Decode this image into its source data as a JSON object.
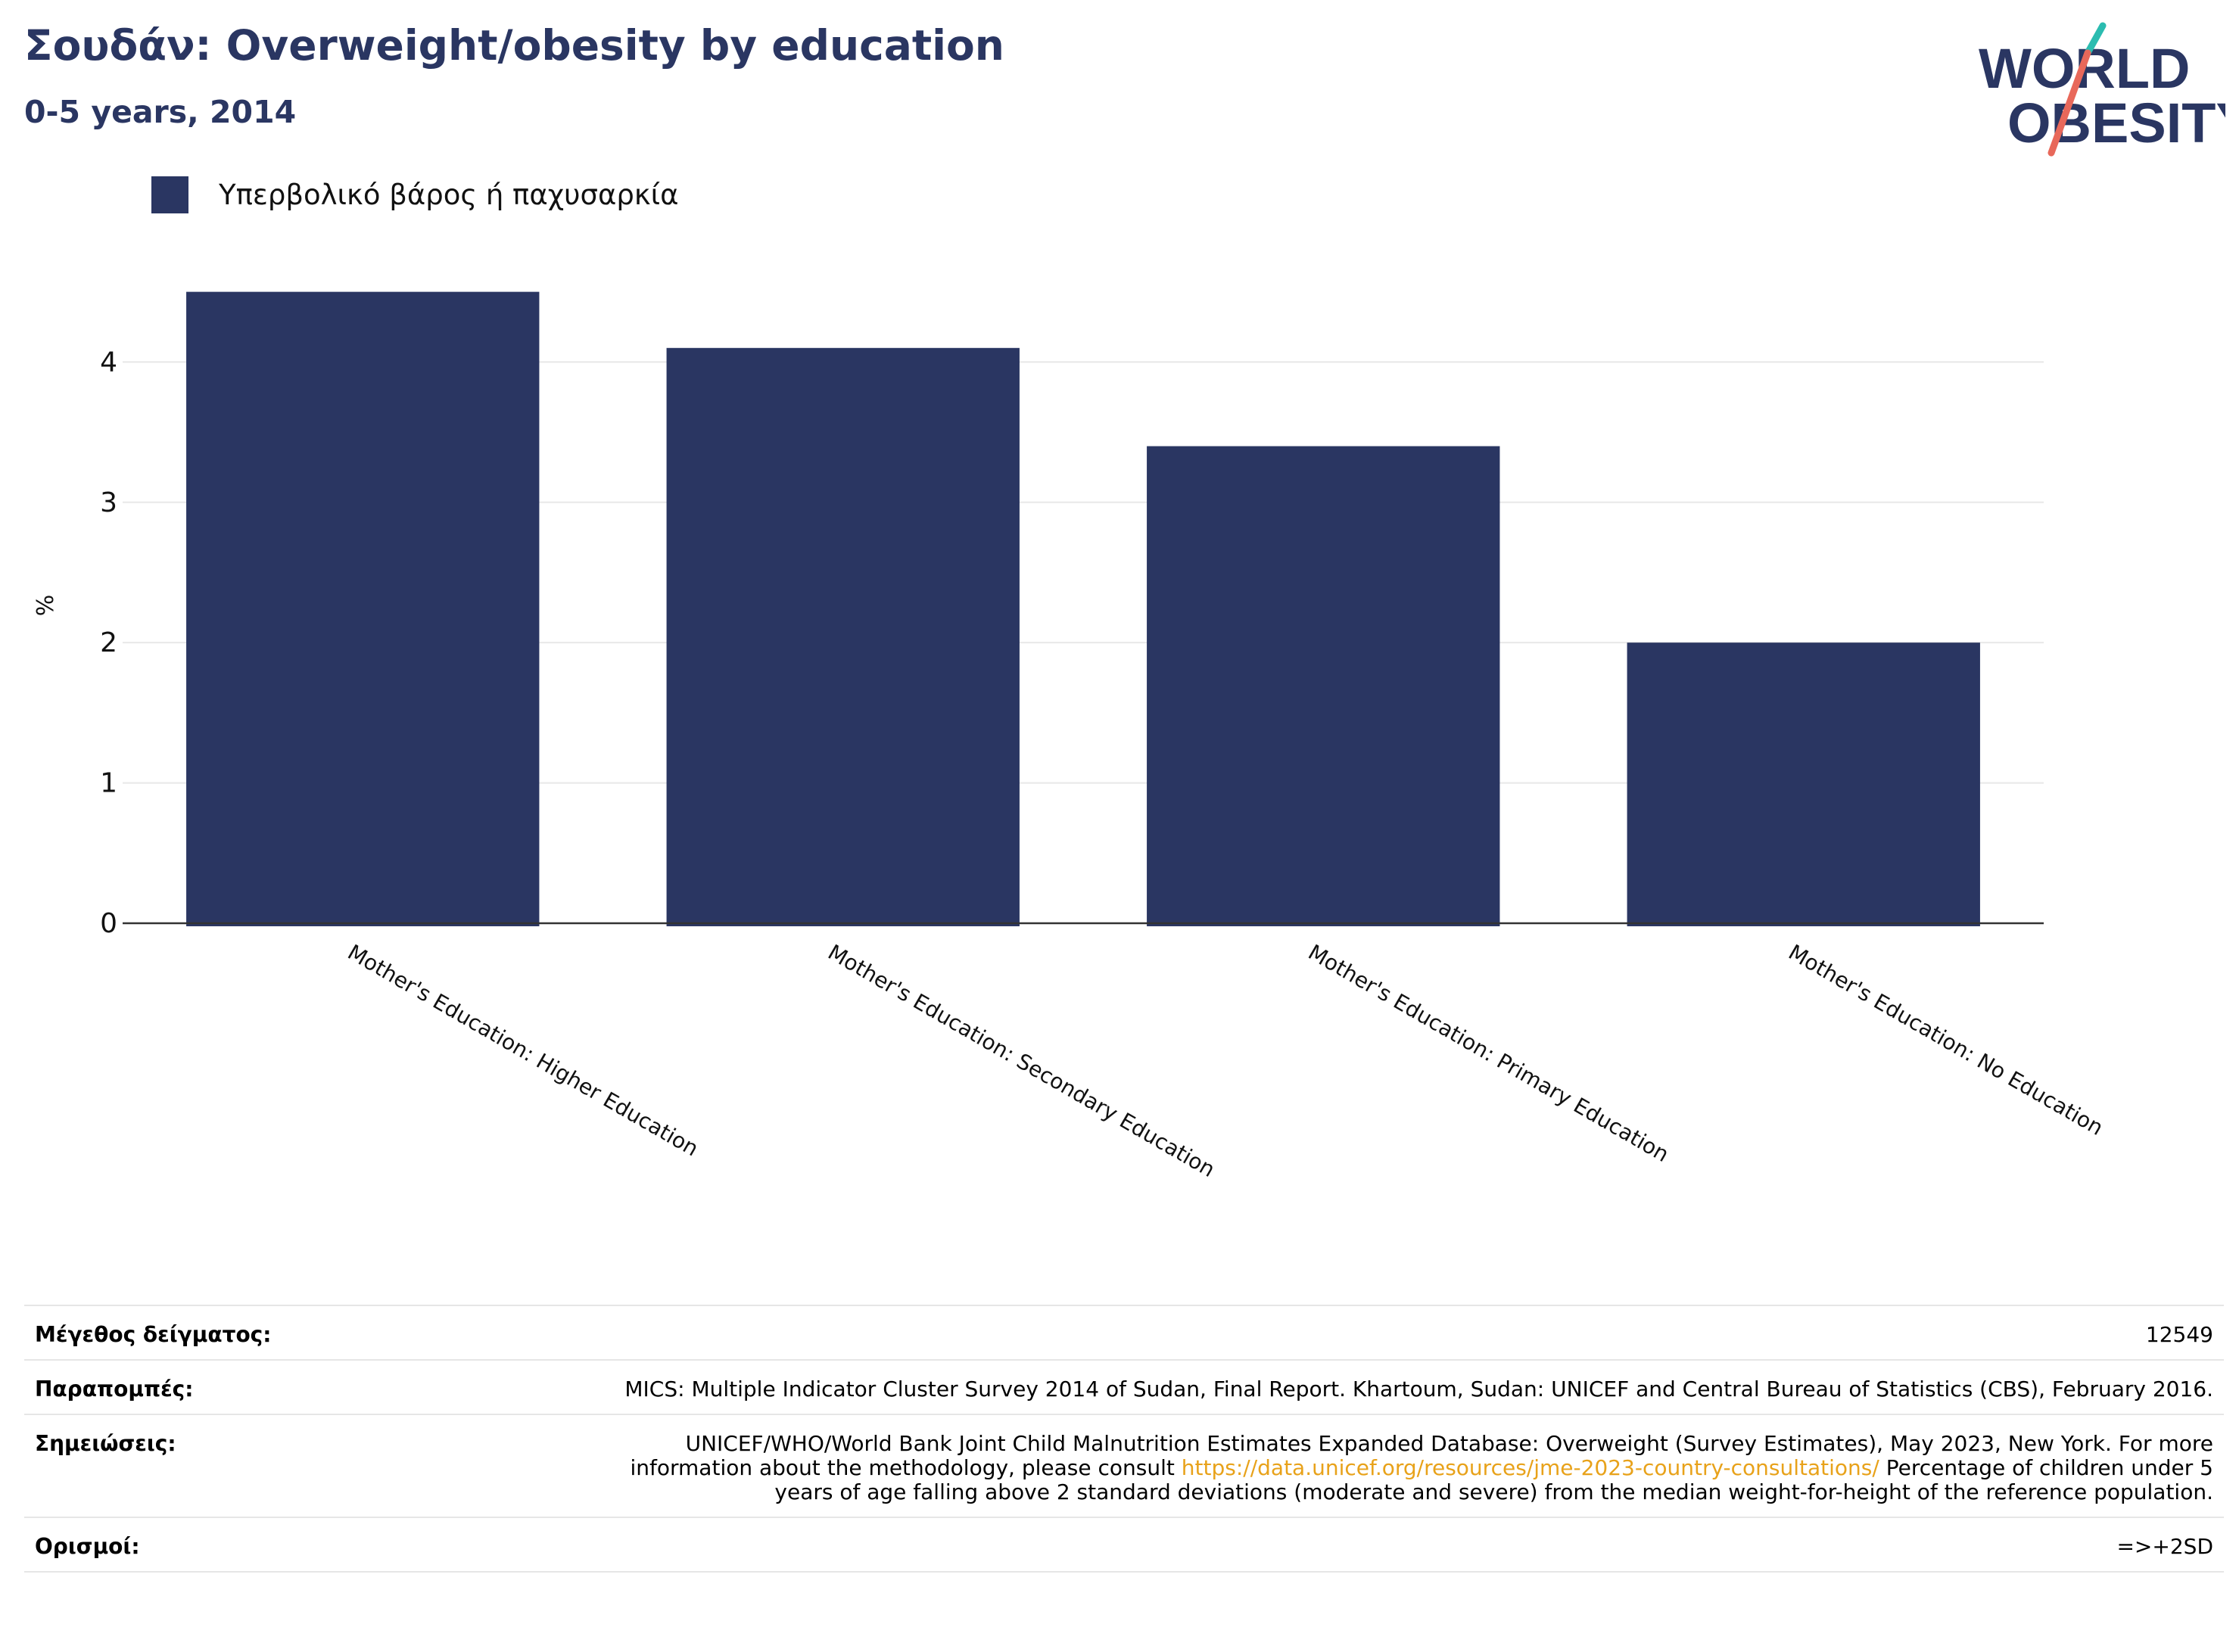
{
  "header": {
    "title": "Σουδάν: Overweight/obesity by education",
    "subtitle": "0-5 years, 2014"
  },
  "logo": {
    "line1": "WORLD",
    "line2": "OBESITY",
    "colors": {
      "text": "#2a3662",
      "accent_teal": "#2bbcb0",
      "accent_coral": "#e8685a"
    }
  },
  "legend": {
    "label": "Υπερβολικό βάρος ή παχυσαρκία",
    "color": "#2a3662"
  },
  "chart_data": {
    "type": "bar",
    "categories": [
      "Mother's Education: Higher Education",
      "Mother's Education: Secondary Education",
      "Mother's Education: Primary Education",
      "Mother's Education: No Education"
    ],
    "series": [
      {
        "name": "Υπερβολικό βάρος ή παχυσαρκία",
        "values": [
          4.5,
          4.1,
          3.4,
          2.0
        ],
        "color": "#2a3662"
      }
    ],
    "ylabel": "%",
    "ylim": [
      0,
      4.8
    ],
    "yticks": [
      0,
      1,
      2,
      3,
      4
    ],
    "grid": true,
    "legend_position": "top-left"
  },
  "info": {
    "sample_size_label": "Μέγεθος δείγματος:",
    "sample_size_value": "12549",
    "references_label": "Παραπομπές:",
    "references_value": "MICS: Multiple Indicator Cluster Survey 2014 of Sudan, Final Report. Khartoum, Sudan: UNICEF and Central Bureau of Statistics (CBS), February 2016.",
    "notes_label": "Σημειώσεις:",
    "notes_before_link": "UNICEF/WHO/World Bank Joint Child Malnutrition Estimates Expanded Database: Overweight (Survey Estimates), May 2023, New York. For more information about the methodology, please consult ",
    "notes_link": "https://data.unicef.org/resources/jme-2023-country-consultations/",
    "notes_after_link": " Percentage of children under 5 years of age falling above 2 standard deviations (moderate and severe) from the median weight-for-height of the reference population.",
    "definitions_label": "Ορισμοί:",
    "definitions_value": "=>+2SD"
  }
}
